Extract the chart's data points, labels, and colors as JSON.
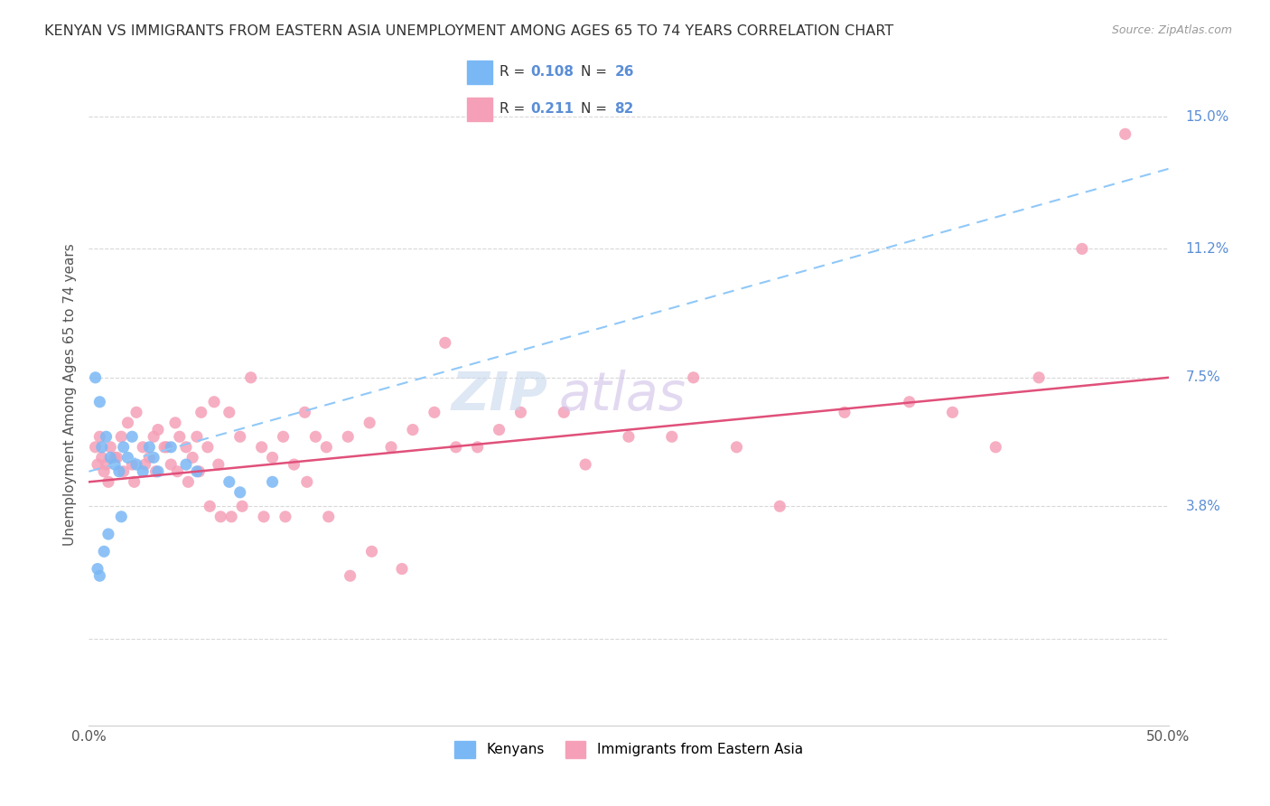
{
  "title": "KENYAN VS IMMIGRANTS FROM EASTERN ASIA UNEMPLOYMENT AMONG AGES 65 TO 74 YEARS CORRELATION CHART",
  "source": "Source: ZipAtlas.com",
  "xmin": 0.0,
  "xmax": 50.0,
  "ymin": -2.5,
  "ymax": 16.5,
  "ylabel_ticks": [
    0.0,
    3.8,
    7.5,
    11.2,
    15.0
  ],
  "ylabel_tick_labels": [
    "",
    "3.8%",
    "7.5%",
    "11.2%",
    "15.0%"
  ],
  "kenyan_color": "#7ab8f5",
  "eastern_asia_color": "#f5a0b8",
  "kenyan_line_color": "#90c8f8",
  "eastern_asia_line_color": "#e0507a",
  "kenyan_R": 0.108,
  "kenyan_N": 26,
  "eastern_asia_R": 0.211,
  "eastern_asia_N": 82,
  "background_color": "#ffffff",
  "grid_color": "#d8d8d8",
  "kenyan_line_y0": 4.8,
  "kenyan_line_y1": 13.5,
  "eastern_line_y0": 4.5,
  "eastern_line_y1": 7.5,
  "kenyan_x": [
    0.3,
    0.5,
    0.6,
    0.8,
    1.0,
    1.2,
    1.4,
    1.6,
    1.8,
    2.0,
    2.2,
    2.5,
    2.8,
    3.0,
    3.2,
    3.8,
    4.5,
    5.0,
    6.5,
    7.0,
    8.5,
    0.4,
    0.5,
    0.7,
    0.9,
    1.5
  ],
  "kenyan_y": [
    7.5,
    6.8,
    5.5,
    5.8,
    5.2,
    5.0,
    4.8,
    5.5,
    5.2,
    5.8,
    5.0,
    4.8,
    5.5,
    5.2,
    4.8,
    5.5,
    5.0,
    4.8,
    4.5,
    4.2,
    4.5,
    2.0,
    1.8,
    2.5,
    3.0,
    3.5
  ],
  "eastern_x": [
    0.3,
    0.5,
    0.6,
    0.8,
    1.0,
    1.2,
    1.5,
    1.8,
    2.0,
    2.2,
    2.5,
    2.8,
    3.0,
    3.2,
    3.5,
    3.8,
    4.0,
    4.2,
    4.5,
    4.8,
    5.0,
    5.2,
    5.5,
    5.8,
    6.0,
    6.5,
    7.0,
    7.5,
    8.0,
    8.5,
    9.0,
    9.5,
    10.0,
    10.5,
    11.0,
    12.0,
    13.0,
    14.0,
    15.0,
    16.0,
    17.0,
    18.0,
    19.0,
    20.0,
    22.0,
    23.0,
    25.0,
    27.0,
    28.0,
    30.0,
    32.0,
    35.0,
    38.0,
    40.0,
    42.0,
    44.0,
    46.0,
    48.0,
    0.4,
    0.7,
    0.9,
    1.3,
    1.6,
    2.1,
    2.6,
    3.1,
    3.6,
    4.1,
    4.6,
    5.1,
    5.6,
    6.1,
    6.6,
    7.1,
    8.1,
    9.1,
    10.1,
    11.1,
    12.1,
    13.1,
    14.5,
    16.5
  ],
  "eastern_y": [
    5.5,
    5.8,
    5.2,
    5.0,
    5.5,
    5.2,
    5.8,
    6.2,
    5.0,
    6.5,
    5.5,
    5.2,
    5.8,
    6.0,
    5.5,
    5.0,
    6.2,
    5.8,
    5.5,
    5.2,
    5.8,
    6.5,
    5.5,
    6.8,
    5.0,
    6.5,
    5.8,
    7.5,
    5.5,
    5.2,
    5.8,
    5.0,
    6.5,
    5.8,
    5.5,
    5.8,
    6.2,
    5.5,
    6.0,
    6.5,
    5.5,
    5.5,
    6.0,
    6.5,
    6.5,
    5.0,
    5.8,
    5.8,
    7.5,
    5.5,
    3.8,
    6.5,
    6.8,
    6.5,
    5.5,
    7.5,
    11.2,
    14.5,
    5.0,
    4.8,
    4.5,
    5.2,
    4.8,
    4.5,
    5.0,
    4.8,
    5.5,
    4.8,
    4.5,
    4.8,
    3.8,
    3.5,
    3.5,
    3.8,
    3.5,
    3.5,
    4.5,
    3.5,
    1.8,
    2.5,
    2.0,
    8.5
  ]
}
